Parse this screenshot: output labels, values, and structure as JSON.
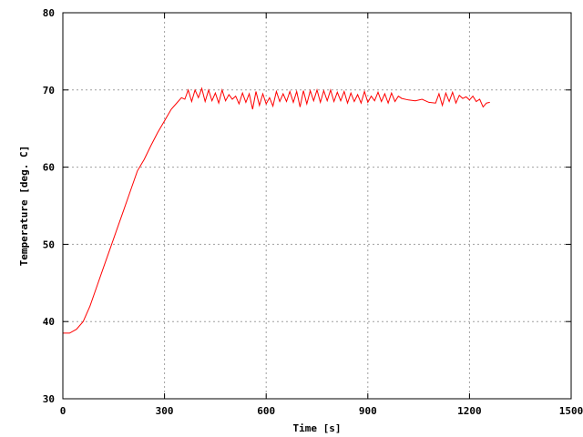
{
  "chart_data": {
    "type": "line",
    "title": "",
    "xlabel": "Time [s]",
    "ylabel": "Temperature [deg. C]",
    "xlim": [
      0,
      1500
    ],
    "ylim": [
      30,
      80
    ],
    "xticks": [
      0,
      300,
      600,
      900,
      1200,
      1500
    ],
    "yticks": [
      30,
      40,
      50,
      60,
      70,
      80
    ],
    "grid": true,
    "legend": "none",
    "series": [
      {
        "color": "#ff0000",
        "x": [
          0,
          20,
          40,
          60,
          80,
          100,
          120,
          140,
          160,
          180,
          200,
          220,
          240,
          260,
          280,
          300,
          320,
          340,
          350,
          360,
          370,
          380,
          390,
          400,
          410,
          420,
          430,
          440,
          450,
          460,
          470,
          480,
          490,
          500,
          510,
          520,
          530,
          540,
          550,
          560,
          570,
          580,
          590,
          600,
          610,
          620,
          630,
          640,
          650,
          660,
          670,
          680,
          690,
          700,
          710,
          720,
          730,
          740,
          750,
          760,
          770,
          780,
          790,
          800,
          810,
          820,
          830,
          840,
          850,
          860,
          870,
          880,
          890,
          900,
          910,
          920,
          930,
          940,
          950,
          960,
          970,
          980,
          990,
          1000,
          1020,
          1040,
          1060,
          1080,
          1100,
          1110,
          1120,
          1130,
          1140,
          1150,
          1160,
          1170,
          1180,
          1190,
          1200,
          1210,
          1220,
          1230,
          1240,
          1250,
          1260
        ],
        "y": [
          38.5,
          38.5,
          39,
          40,
          42,
          44.5,
          47,
          49.5,
          52,
          54.5,
          57,
          59.5,
          61,
          62.8,
          64.5,
          66,
          67.5,
          68.5,
          69,
          68.8,
          70,
          68.5,
          70,
          69,
          70.2,
          68.5,
          70,
          68.6,
          69.6,
          68.3,
          70,
          68.6,
          69.4,
          68.8,
          69.2,
          68.2,
          69.6,
          68.4,
          69.5,
          67.5,
          69.8,
          68,
          69.5,
          68.2,
          69,
          67.9,
          69.8,
          68.5,
          69.5,
          68.5,
          69.8,
          68.4,
          69.8,
          67.8,
          69.9,
          68.2,
          69.9,
          68.6,
          70,
          68.4,
          69.9,
          68.6,
          70,
          68.5,
          69.7,
          68.6,
          69.8,
          68.3,
          69.6,
          68.5,
          69.4,
          68.3,
          69.8,
          68.4,
          69.2,
          68.6,
          69.7,
          68.5,
          69.5,
          68.3,
          69.6,
          68.5,
          69.2,
          68.9,
          68.7,
          68.6,
          68.8,
          68.4,
          68.3,
          69.5,
          68,
          69.6,
          68.5,
          69.7,
          68.3,
          69.3,
          68.9,
          69.1,
          68.7,
          69.2,
          68.5,
          68.8,
          67.8,
          68.3,
          68.4
        ]
      }
    ]
  }
}
